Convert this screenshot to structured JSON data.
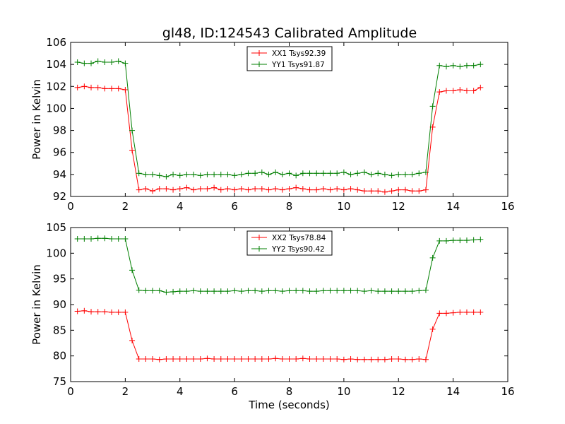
{
  "figure": {
    "title": "gl48, ID:124543 Calibrated Amplitude"
  },
  "chart_data": [
    {
      "type": "line",
      "title": "gl48, ID:124543 Calibrated Amplitude",
      "xlabel": "",
      "ylabel": "Power in Kelvin",
      "xlim": [
        0,
        16
      ],
      "ylim": [
        92,
        106
      ],
      "xticks": [
        0,
        2,
        4,
        6,
        8,
        10,
        12,
        14,
        16
      ],
      "yticks": [
        92,
        94,
        96,
        98,
        100,
        102,
        104,
        106
      ],
      "grid": false,
      "legend_position": "top-center",
      "x": [
        0.25,
        0.5,
        0.75,
        1.0,
        1.25,
        1.5,
        1.75,
        2.0,
        2.25,
        2.5,
        2.75,
        3.0,
        3.25,
        3.5,
        3.75,
        4.0,
        4.25,
        4.5,
        4.75,
        5.0,
        5.25,
        5.5,
        5.75,
        6.0,
        6.25,
        6.5,
        6.75,
        7.0,
        7.25,
        7.5,
        7.75,
        8.0,
        8.25,
        8.5,
        8.75,
        9.0,
        9.25,
        9.5,
        9.75,
        10.0,
        10.25,
        10.5,
        10.75,
        11.0,
        11.25,
        11.5,
        11.75,
        12.0,
        12.25,
        12.5,
        12.75,
        13.0,
        13.25,
        13.5,
        13.75,
        14.0,
        14.25,
        14.5,
        14.75,
        15.0
      ],
      "series": [
        {
          "name": "XX1 Tsys92.39",
          "color": "#ff0000",
          "values": [
            101.9,
            102.0,
            101.9,
            101.9,
            101.8,
            101.8,
            101.8,
            101.7,
            96.2,
            92.6,
            92.7,
            92.5,
            92.7,
            92.7,
            92.6,
            92.7,
            92.8,
            92.6,
            92.7,
            92.7,
            92.8,
            92.6,
            92.7,
            92.6,
            92.7,
            92.6,
            92.7,
            92.7,
            92.6,
            92.7,
            92.6,
            92.7,
            92.8,
            92.7,
            92.6,
            92.6,
            92.7,
            92.6,
            92.7,
            92.6,
            92.7,
            92.6,
            92.5,
            92.5,
            92.5,
            92.4,
            92.5,
            92.6,
            92.6,
            92.5,
            92.5,
            92.6,
            98.3,
            101.5,
            101.6,
            101.6,
            101.7,
            101.6,
            101.6,
            101.9
          ]
        },
        {
          "name": "YY1 Tsys91.87",
          "color": "#007f00",
          "values": [
            104.2,
            104.1,
            104.1,
            104.3,
            104.2,
            104.2,
            104.3,
            104.1,
            98.0,
            94.1,
            94.0,
            94.0,
            93.9,
            93.8,
            94.0,
            93.9,
            94.0,
            94.0,
            93.9,
            94.0,
            94.0,
            94.0,
            94.0,
            93.9,
            94.0,
            94.1,
            94.1,
            94.2,
            94.0,
            94.2,
            94.0,
            94.1,
            93.9,
            94.1,
            94.1,
            94.1,
            94.1,
            94.1,
            94.1,
            94.2,
            94.0,
            94.1,
            94.2,
            94.0,
            94.1,
            94.0,
            93.9,
            94.0,
            94.0,
            94.0,
            94.1,
            94.2,
            100.2,
            103.9,
            103.8,
            103.9,
            103.8,
            103.9,
            103.9,
            104.0
          ]
        }
      ]
    },
    {
      "type": "line",
      "title": "",
      "xlabel": "Time (seconds)",
      "ylabel": "Power in Kelvin",
      "xlim": [
        0,
        16
      ],
      "ylim": [
        75,
        105
      ],
      "xticks": [
        0,
        2,
        4,
        6,
        8,
        10,
        12,
        14,
        16
      ],
      "yticks": [
        75,
        80,
        85,
        90,
        95,
        100,
        105
      ],
      "grid": false,
      "legend_position": "top-center",
      "x": [
        0.25,
        0.5,
        0.75,
        1.0,
        1.25,
        1.5,
        1.75,
        2.0,
        2.25,
        2.5,
        2.75,
        3.0,
        3.25,
        3.5,
        3.75,
        4.0,
        4.25,
        4.5,
        4.75,
        5.0,
        5.25,
        5.5,
        5.75,
        6.0,
        6.25,
        6.5,
        6.75,
        7.0,
        7.25,
        7.5,
        7.75,
        8.0,
        8.25,
        8.5,
        8.75,
        9.0,
        9.25,
        9.5,
        9.75,
        10.0,
        10.25,
        10.5,
        10.75,
        11.0,
        11.25,
        11.5,
        11.75,
        12.0,
        12.25,
        12.5,
        12.75,
        13.0,
        13.25,
        13.5,
        13.75,
        14.0,
        14.25,
        14.5,
        14.75,
        15.0
      ],
      "series": [
        {
          "name": "XX2 Tsys78.84",
          "color": "#ff0000",
          "values": [
            88.7,
            88.8,
            88.6,
            88.6,
            88.6,
            88.5,
            88.5,
            88.5,
            83.0,
            79.4,
            79.4,
            79.4,
            79.3,
            79.4,
            79.4,
            79.4,
            79.4,
            79.4,
            79.4,
            79.5,
            79.4,
            79.4,
            79.4,
            79.4,
            79.4,
            79.4,
            79.4,
            79.4,
            79.4,
            79.5,
            79.4,
            79.4,
            79.4,
            79.5,
            79.4,
            79.4,
            79.4,
            79.4,
            79.4,
            79.3,
            79.4,
            79.3,
            79.3,
            79.3,
            79.3,
            79.3,
            79.4,
            79.4,
            79.3,
            79.3,
            79.4,
            79.3,
            85.2,
            88.3,
            88.3,
            88.4,
            88.5,
            88.5,
            88.5,
            88.5
          ]
        },
        {
          "name": "YY2 Tsys90.42",
          "color": "#007f00",
          "values": [
            102.8,
            102.8,
            102.8,
            102.9,
            102.9,
            102.8,
            102.8,
            102.8,
            96.7,
            92.8,
            92.7,
            92.7,
            92.7,
            92.4,
            92.5,
            92.6,
            92.6,
            92.7,
            92.6,
            92.6,
            92.6,
            92.6,
            92.6,
            92.7,
            92.6,
            92.7,
            92.7,
            92.6,
            92.7,
            92.7,
            92.6,
            92.7,
            92.7,
            92.7,
            92.6,
            92.6,
            92.7,
            92.7,
            92.7,
            92.7,
            92.7,
            92.7,
            92.6,
            92.7,
            92.6,
            92.6,
            92.6,
            92.6,
            92.6,
            92.6,
            92.7,
            92.8,
            99.1,
            102.4,
            102.4,
            102.5,
            102.5,
            102.5,
            102.6,
            102.7
          ]
        }
      ]
    }
  ]
}
